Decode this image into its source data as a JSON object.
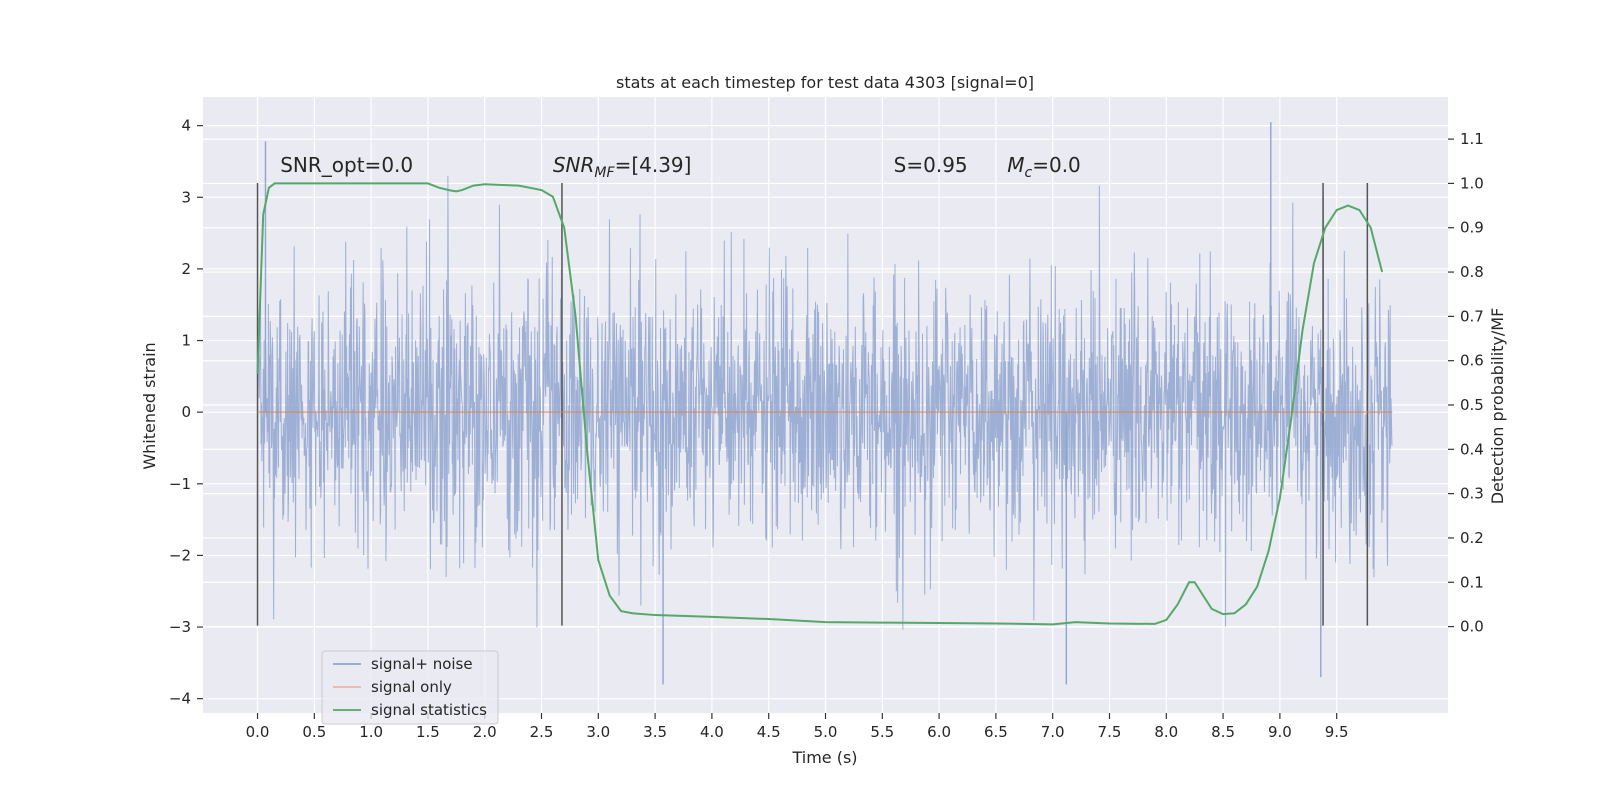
{
  "chart_data": {
    "type": "line",
    "title": "stats at each timestep for test data 4303 [signal=0]",
    "xlabel": "Time (s)",
    "ylabel_left": "Whitened strain",
    "ylabel_right": "Detection probability/MF",
    "xlim": [
      -0.48,
      10.48
    ],
    "ylim_left": [
      -4.2,
      4.4
    ],
    "ylim_right": [
      -0.195,
      1.195
    ],
    "x_ticks": [
      0.0,
      0.5,
      1.0,
      1.5,
      2.0,
      2.5,
      3.0,
      3.5,
      4.0,
      4.5,
      5.0,
      5.5,
      6.0,
      6.5,
      7.0,
      7.5,
      8.0,
      8.5,
      9.0,
      9.5
    ],
    "x_tick_labels": [
      "0.0",
      "0.5",
      "1.0",
      "1.5",
      "2.0",
      "2.5",
      "3.0",
      "3.5",
      "4.0",
      "4.5",
      "5.0",
      "5.5",
      "6.0",
      "6.5",
      "7.0",
      "7.5",
      "8.0",
      "8.5",
      "9.0",
      "9.5"
    ],
    "y_left_ticks": [
      -4,
      -3,
      -2,
      -1,
      0,
      1,
      2,
      3,
      4
    ],
    "y_left_tick_labels": [
      "−4",
      "−3",
      "−2",
      "−1",
      "0",
      "1",
      "2",
      "3",
      "4"
    ],
    "y_right_ticks": [
      0.0,
      0.1,
      0.2,
      0.3,
      0.4,
      0.5,
      0.6,
      0.7,
      0.8,
      0.9,
      1.0,
      1.1
    ],
    "y_right_tick_labels": [
      "0.0",
      "0.1",
      "0.2",
      "0.3",
      "0.4",
      "0.5",
      "0.6",
      "0.7",
      "0.8",
      "0.9",
      "1.0",
      "1.1"
    ],
    "grid": true,
    "legend_position": "lower-left",
    "series": [
      {
        "name": "signal+ noise",
        "axis": "left",
        "color": "#8fa5cf",
        "style": "noise",
        "x_range": [
          0.0,
          9.99
        ],
        "amplitude_std": 0.9,
        "notable_peaks": [
          [
            0.07,
            3.78
          ],
          [
            8.92,
            4.05
          ],
          [
            3.57,
            -3.8
          ],
          [
            7.12,
            -3.8
          ],
          [
            9.36,
            -3.7
          ]
        ]
      },
      {
        "name": "signal only",
        "axis": "left",
        "color": "#dd8452",
        "x": [
          0.0,
          9.99
        ],
        "y": [
          0.0,
          0.0
        ]
      },
      {
        "name": "signal statistics",
        "axis": "right",
        "color": "#55a868",
        "x": [
          0.0,
          0.05,
          0.1,
          0.15,
          0.2,
          0.3,
          0.5,
          1.0,
          1.5,
          1.6,
          1.7,
          1.75,
          1.8,
          1.9,
          2.0,
          2.3,
          2.5,
          2.6,
          2.7,
          2.8,
          2.9,
          3.0,
          3.1,
          3.2,
          3.3,
          3.5,
          4.0,
          4.5,
          5.0,
          5.5,
          6.0,
          6.5,
          7.0,
          7.2,
          7.5,
          7.9,
          8.0,
          8.1,
          8.2,
          8.25,
          8.3,
          8.4,
          8.5,
          8.6,
          8.7,
          8.8,
          8.9,
          9.0,
          9.1,
          9.2,
          9.3,
          9.4,
          9.5,
          9.6,
          9.7,
          9.8,
          9.9
        ],
        "y": [
          0.57,
          0.93,
          0.99,
          1.0,
          1.0,
          1.0,
          1.0,
          1.0,
          1.0,
          0.99,
          0.984,
          0.982,
          0.985,
          0.995,
          0.998,
          0.995,
          0.985,
          0.97,
          0.9,
          0.7,
          0.4,
          0.15,
          0.07,
          0.035,
          0.03,
          0.026,
          0.022,
          0.017,
          0.01,
          0.009,
          0.008,
          0.007,
          0.005,
          0.01,
          0.007,
          0.006,
          0.015,
          0.05,
          0.1,
          0.1,
          0.08,
          0.04,
          0.028,
          0.03,
          0.05,
          0.09,
          0.17,
          0.29,
          0.47,
          0.67,
          0.82,
          0.9,
          0.94,
          0.95,
          0.94,
          0.9,
          0.8
        ]
      }
    ],
    "vertical_markers": [
      {
        "x": 0.0,
        "y_top": 3.2,
        "y_bottom": -2.98
      },
      {
        "x": 2.68,
        "y_top": 3.2,
        "y_bottom": -2.98
      },
      {
        "x": 9.38,
        "y_top": 3.2,
        "y_bottom": -2.98
      },
      {
        "x": 9.77,
        "y_top": 3.2,
        "y_bottom": -2.98
      }
    ],
    "annotations": [
      {
        "text": "SNR_opt=0.0",
        "x": 0.2,
        "y": 3.35
      },
      {
        "text": "SNR_MF=[4.39]",
        "x": 2.6,
        "y": 3.35
      },
      {
        "text": "S=0.95",
        "x": 5.6,
        "y": 3.35
      },
      {
        "text": "M_c=0.0",
        "x": 6.6,
        "y": 3.35
      }
    ]
  }
}
